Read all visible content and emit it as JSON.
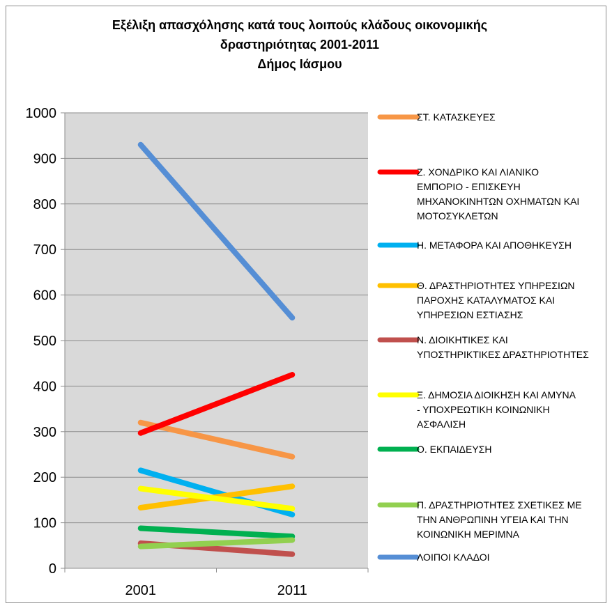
{
  "chart_data": {
    "type": "line",
    "title_lines": [
      "Εξέλιξη απασχόλησης κατά τους λοιπούς κλάδους οικονομικής",
      "δραστηριότητας  2001-2011",
      "Δήμος Ιάσμου"
    ],
    "categories": [
      "2001",
      "2011"
    ],
    "ylim": [
      0,
      1000
    ],
    "yticks": [
      "0",
      "100",
      "200",
      "300",
      "400",
      "500",
      "600",
      "700",
      "800",
      "900",
      "1000"
    ],
    "grid": true,
    "legend_position": "right",
    "series": [
      {
        "name": "ΣΤ. ΚΑΤΑΣΚΕΥΕΣ",
        "values": [
          320,
          245
        ],
        "color": "#f79646",
        "legend_lines": [
          "ΣΤ. ΚΑΤΑΣΚΕΥΕΣ"
        ]
      },
      {
        "name": "Ζ. ΧΟΝΔΡΙΚΟ ΚΑΙ ΛΙΑΝΙΚΟ ΕΜΠΟΡΙΟ - ΕΠΙΣΚΕΥΗ ΜΗΧΑΝΟΚΙΝΗΤΩΝ ΟΧΗΜΑΤΩΝ ΚΑΙ ΜΟΤΟΣΥΚΛΕΤΩΝ",
        "values": [
          297,
          425
        ],
        "color": "#ff0000",
        "legend_lines": [
          "Ζ. ΧΟΝΔΡΙΚΟ ΚΑΙ ΛΙΑΝΙΚΟ",
          "ΕΜΠΟΡΙΟ - ΕΠΙΣΚΕΥΗ",
          "ΜΗΧΑΝΟΚΙΝΗΤΩΝ ΟΧΗΜΑΤΩΝ ΚΑΙ",
          "ΜΟΤΟΣΥΚΛΕΤΩΝ"
        ]
      },
      {
        "name": "Η. ΜΕΤΑΦΟΡΑ ΚΑΙ ΑΠΟΘΗΚΕΥΣΗ",
        "values": [
          215,
          118
        ],
        "color": "#00b0f0",
        "legend_lines": [
          "Η. ΜΕΤΑΦΟΡΑ ΚΑΙ ΑΠΟΘΗΚΕΥΣΗ"
        ]
      },
      {
        "name": "Θ. ΔΡΑΣΤΗΡΙΟΤΗΤΕΣ ΥΠΗΡΕΣΙΩΝ ΠΑΡΟΧΗΣ ΚΑΤΑΛΥΜΑΤΟΣ ΚΑΙ ΥΠΗΡΕΣΙΩΝ ΕΣΤΙΑΣΗΣ",
        "values": [
          133,
          180
        ],
        "color": "#ffc000",
        "legend_lines": [
          "Θ. ΔΡΑΣΤΗΡΙΟΤΗΤΕΣ ΥΠΗΡΕΣΙΩΝ",
          "ΠΑΡΟΧΗΣ ΚΑΤΑΛΥΜΑΤΟΣ ΚΑΙ",
          "ΥΠΗΡΕΣΙΩΝ ΕΣΤΙΑΣΗΣ"
        ]
      },
      {
        "name": "Ν. ΔΙΟΙΚΗΤΙΚΕΣ ΚΑΙ ΥΠΟΣΤΗΡΙΚΤΙΚΕΣ ΔΡΑΣΤΗΡΙΟΤΗΤΕΣ",
        "values": [
          55,
          31
        ],
        "color": "#c0504d",
        "legend_lines": [
          "Ν. ΔΙΟΙΚΗΤΙΚΕΣ ΚΑΙ",
          "ΥΠΟΣΤΗΡΙΚΤΙΚΕΣ ΔΡΑΣΤΗΡΙΟΤΗΤΕΣ"
        ]
      },
      {
        "name": "Ξ. ΔΗΜΟΣΙΑ ΔΙΟΙΚΗΣΗ ΚΑΙ ΑΜΥΝΑ - ΥΠΟΧΡΕΩΤΙΚΗ ΚΟΙΝΩΝΙΚΗ ΑΣΦΑΛΙΣΗ",
        "values": [
          175,
          131
        ],
        "color": "#ffff00",
        "legend_lines": [
          "Ξ. ΔΗΜΟΣΙΑ ΔΙΟΙΚΗΣΗ ΚΑΙ ΑΜΥΝΑ",
          "- ΥΠΟΧΡΕΩΤΙΚΗ ΚΟΙΝΩΝΙΚΗ",
          "ΑΣΦΑΛΙΣΗ"
        ]
      },
      {
        "name": "Ο. ΕΚΠΑΙΔΕΥΣΗ",
        "values": [
          88,
          70
        ],
        "color": "#00b050",
        "legend_lines": [
          "Ο. ΕΚΠΑΙΔΕΥΣΗ"
        ]
      },
      {
        "name": "Π. ΔΡΑΣΤΗΡΙΟΤΗΤΕΣ ΣΧΕΤΙΚΕΣ ΜΕ ΤΗΝ ΑΝΘΡΩΠΙΝΗ ΥΓΕΙΑ ΚΑΙ ΤΗΝ ΚΟΙΝΩΝΙΚΗ ΜΕΡΙΜΝΑ",
        "values": [
          48,
          62
        ],
        "color": "#92d050",
        "legend_lines": [
          "Π. ΔΡΑΣΤΗΡΙΟΤΗΤΕΣ ΣΧΕΤΙΚΕΣ ΜΕ",
          "ΤΗΝ ΑΝΘΡΩΠΙΝΗ ΥΓΕΙΑ ΚΑΙ ΤΗΝ",
          "ΚΟΙΝΩΝΙΚΗ ΜΕΡΙΜΝΑ"
        ]
      },
      {
        "name": "ΛΟΙΠΟΙ ΚΛΑΔΟΙ",
        "values": [
          930,
          550
        ],
        "color": "#558ed5",
        "legend_lines": [
          "ΛΟΙΠΟΙ ΚΛΑΔΟΙ"
        ]
      }
    ]
  }
}
